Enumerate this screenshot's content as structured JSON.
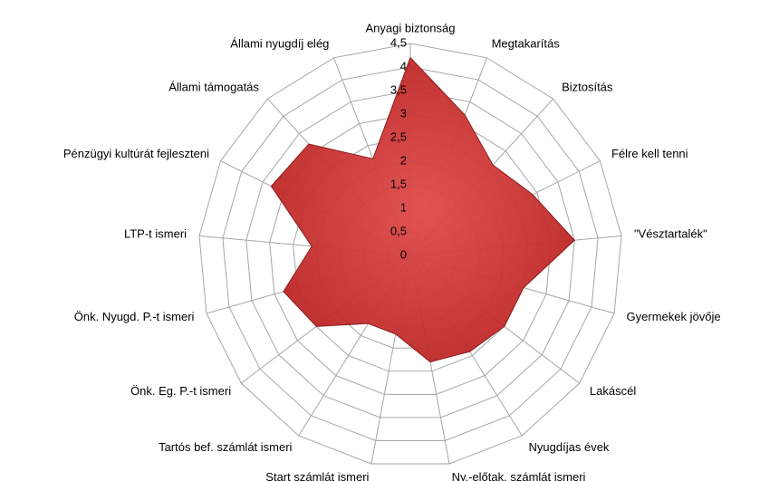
{
  "chart_data": {
    "type": "radar",
    "categories": [
      "Anyagi biztonság",
      "Megtakarítás",
      "Biztosítás",
      "Félre kell tenni",
      "\"Vésztartalék\"",
      "Gyermekek jövője",
      "Lakáscél",
      "Nyugdíjas évek",
      "Ny.-előtak. számlát  ismeri",
      "Start számlát  ismeri",
      "Tartós bef. számlát  ismeri",
      "Önk. Eg. P.-t ismeri",
      "Önk. Nyugd.  P.-t ismeri",
      "LTP-t ismeri",
      "Pénzügyi kultúrát fejleszteni",
      "Állami támogatás",
      "Állami nyugdíj elég"
    ],
    "values": [
      4.2,
      3.2,
      2.6,
      2.9,
      3.5,
      2.5,
      2.5,
      2.4,
      2.3,
      1.7,
      1.7,
      2.5,
      2.8,
      2.1,
      3.3,
      3.2,
      2.2
    ],
    "color": "#cc3333",
    "ylim": [
      0,
      4.5
    ],
    "yticks": [
      0,
      {
        "value": 0.5,
        "label": "0,5"
      },
      1,
      {
        "value": 1.5,
        "label": "1,5"
      },
      2,
      {
        "value": 2.5,
        "label": "2,5"
      },
      3,
      {
        "value": 3.5,
        "label": "3,5"
      },
      4,
      {
        "value": 4.5,
        "label": "4,5"
      }
    ],
    "grid": true
  }
}
